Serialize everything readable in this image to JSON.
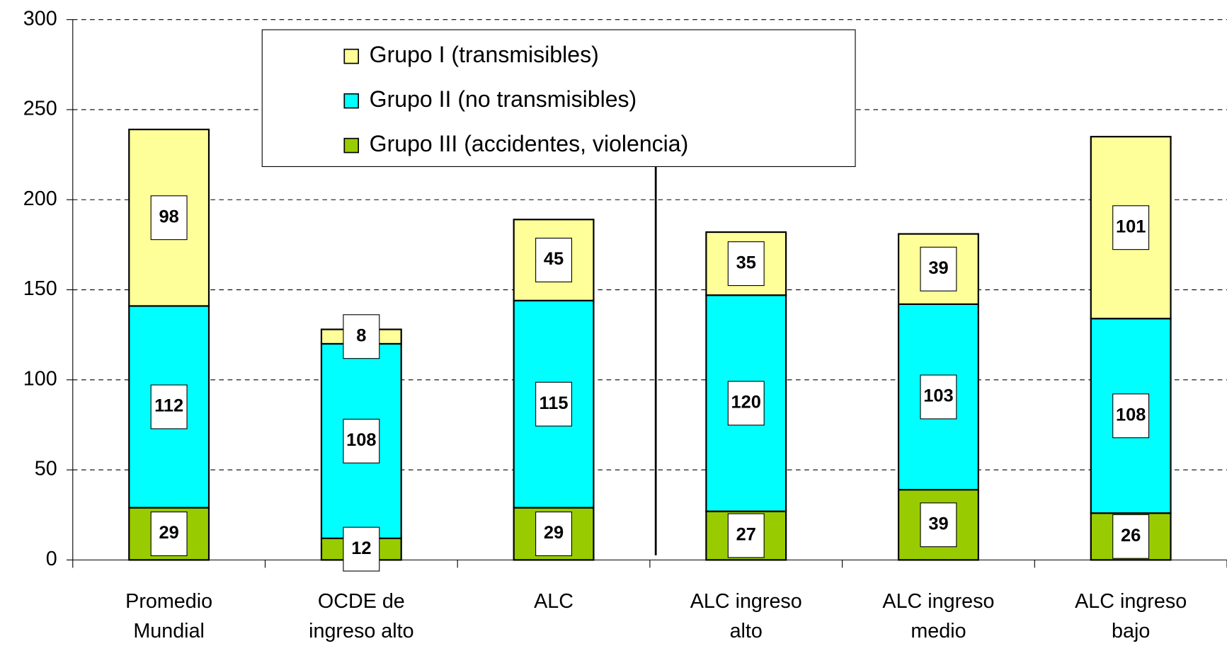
{
  "chart_data": {
    "type": "stacked_bar",
    "categories": [
      "Promedio\nMundial",
      "OCDE de\ningreso alto",
      "ALC",
      "ALC ingreso\nalto",
      "ALC ingreso\nmedio",
      "ALC ingreso\nbajo"
    ],
    "series": [
      {
        "name": "Grupo I (transmisibles)",
        "color": "#ffff99",
        "values": [
          98,
          8,
          45,
          35,
          39,
          101
        ]
      },
      {
        "name": "Grupo II (no transmisibles)",
        "color": "#00ffff",
        "values": [
          112,
          108,
          115,
          120,
          103,
          108
        ]
      },
      {
        "name": "Grupo III (accidentes, violencia)",
        "color": "#99cc00",
        "values": [
          29,
          12,
          29,
          27,
          39,
          26
        ]
      }
    ],
    "ylim": [
      0,
      300
    ],
    "yticks": [
      0,
      50,
      100,
      150,
      200,
      250,
      300
    ],
    "grid": true
  }
}
